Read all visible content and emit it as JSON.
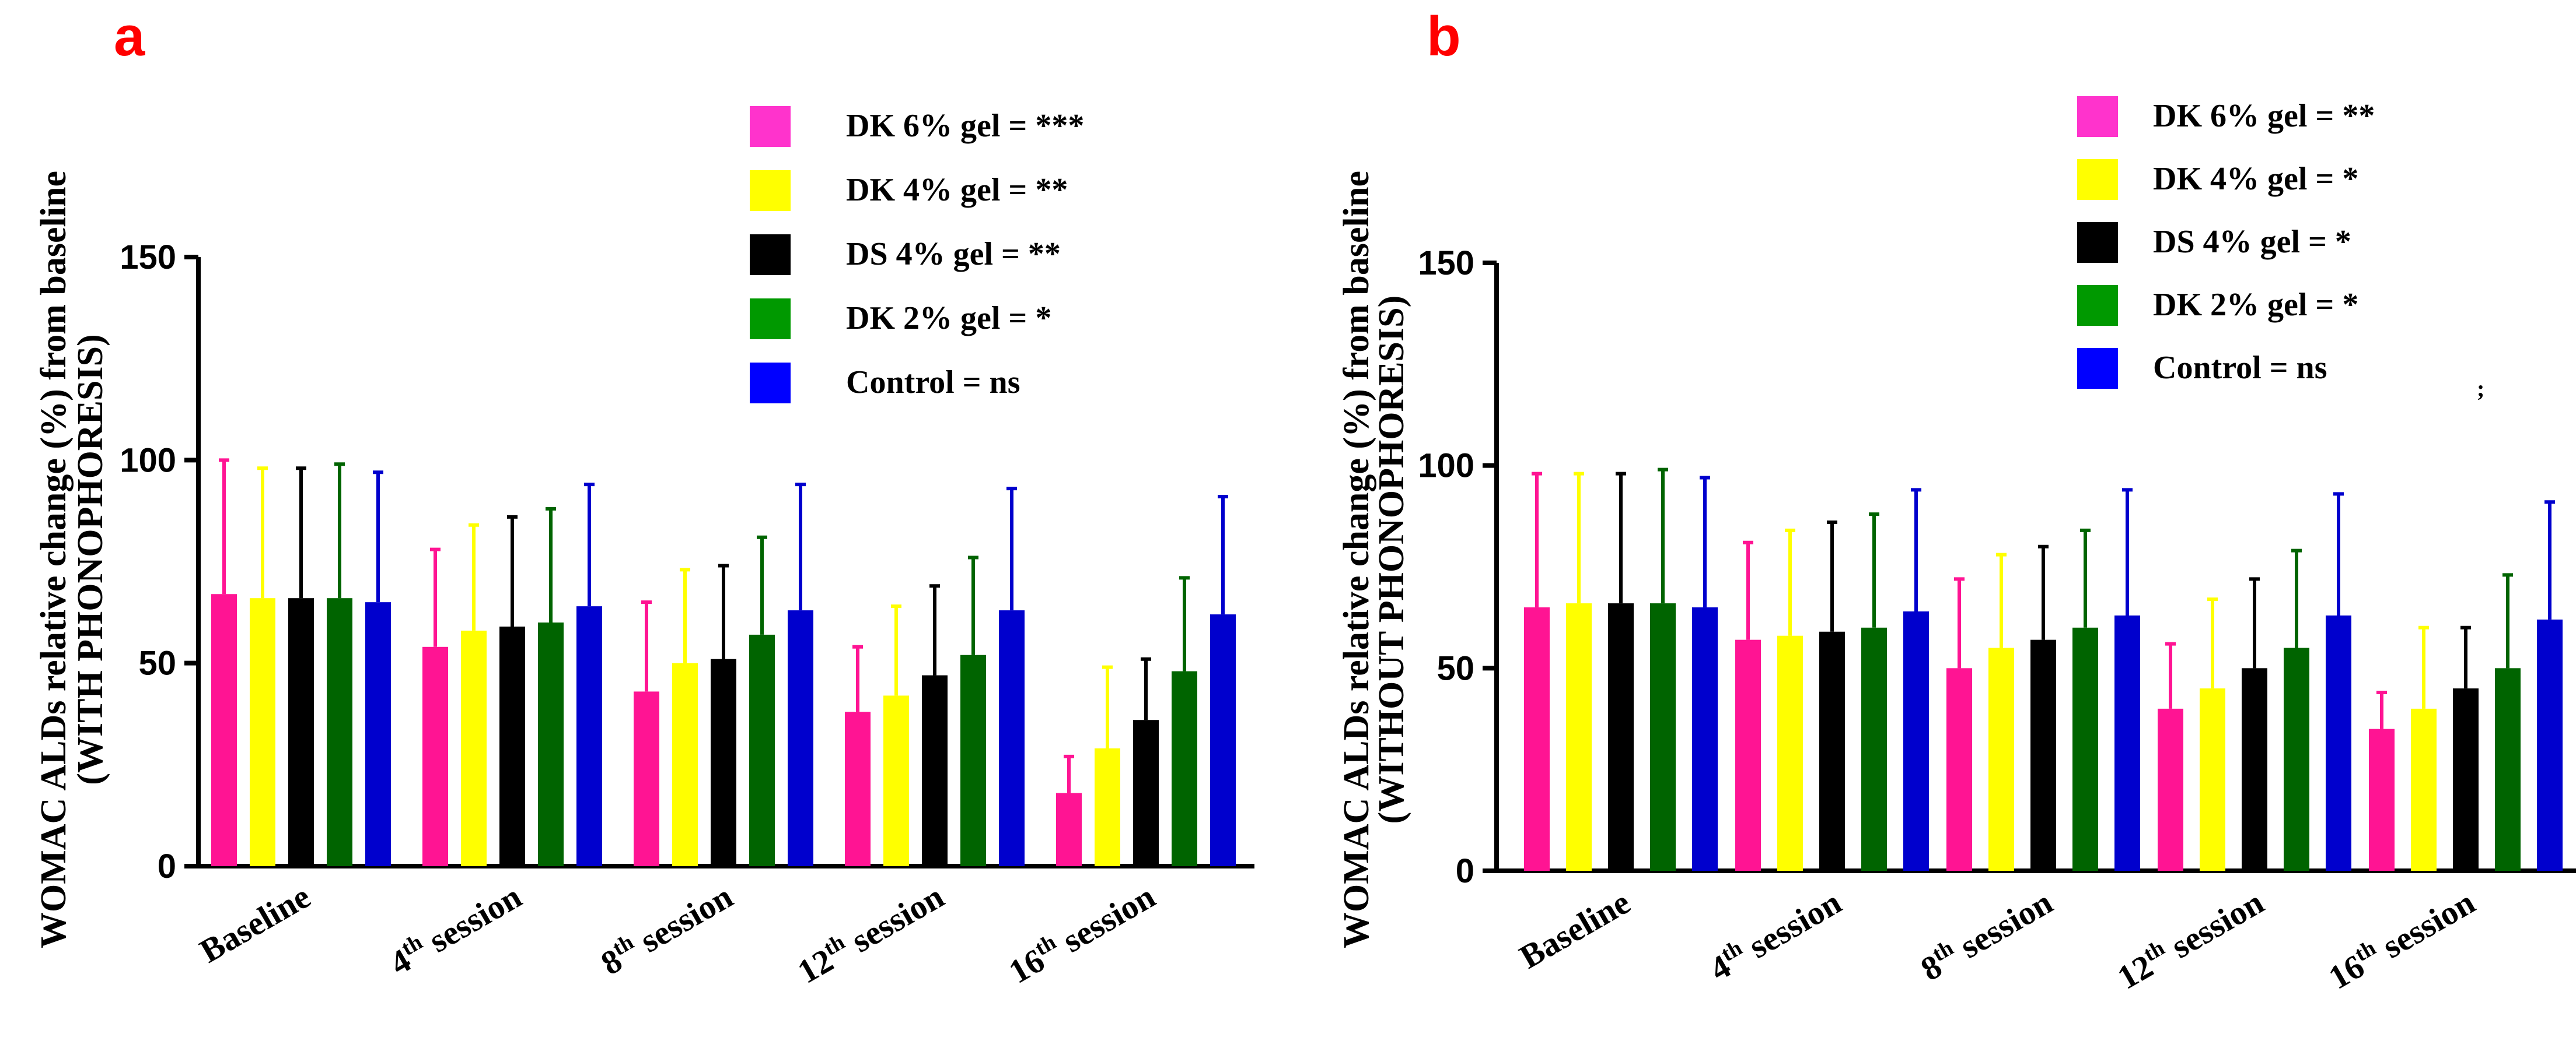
{
  "chart_data": [
    {
      "panel": "a",
      "type": "bar",
      "ylabel_line1": "WOMAC ALDs relative change (%) from baseline",
      "ylabel_line2": "(WITH PHONOPHORESIS)",
      "ylim": [
        0,
        150
      ],
      "yticks": [
        "0",
        "50",
        "100",
        "150"
      ],
      "categories": [
        {
          "main": "Baseline",
          "sup": "",
          "suffix": ""
        },
        {
          "main": "4",
          "sup": "th",
          "suffix": " session"
        },
        {
          "main": "8",
          "sup": "th",
          "suffix": " session"
        },
        {
          "main": "12",
          "sup": "th",
          "suffix": " session"
        },
        {
          "main": "16",
          "sup": "th",
          "suffix": " session"
        }
      ],
      "legend": [
        "DK 6% gel = ***",
        "DK 4% gel = **",
        "DS 4% gel = **",
        "DK 2% gel = *",
        "Control = ns"
      ],
      "series": [
        {
          "name": "DK 6% gel",
          "values": [
            67,
            54,
            43,
            38,
            18
          ],
          "errors": [
            33,
            24,
            22,
            16,
            9
          ]
        },
        {
          "name": "DK 4% gel",
          "values": [
            66,
            58,
            50,
            42,
            29
          ],
          "errors": [
            32,
            26,
            23,
            22,
            20
          ]
        },
        {
          "name": "DS 4% gel",
          "values": [
            66,
            59,
            51,
            47,
            36
          ],
          "errors": [
            32,
            27,
            23,
            22,
            15
          ]
        },
        {
          "name": "DK 2% gel",
          "values": [
            66,
            60,
            57,
            52,
            48
          ],
          "errors": [
            33,
            28,
            24,
            24,
            23
          ]
        },
        {
          "name": "Control",
          "values": [
            65,
            64,
            63,
            63,
            62
          ],
          "errors": [
            32,
            30,
            31,
            30,
            29
          ]
        }
      ]
    },
    {
      "panel": "b",
      "type": "bar",
      "ylabel_line1": "WOMAC ALDs relative change (%) from baseline",
      "ylabel_line2": "(WITHOUT PHONOPHORESIS)",
      "ylim": [
        0,
        150
      ],
      "yticks": [
        "0",
        "50",
        "100",
        "150"
      ],
      "categories": [
        {
          "main": "Baseline",
          "sup": "",
          "suffix": ""
        },
        {
          "main": "4",
          "sup": "th",
          "suffix": " session"
        },
        {
          "main": "8",
          "sup": "th",
          "suffix": " session"
        },
        {
          "main": "12",
          "sup": "th",
          "suffix": " session"
        },
        {
          "main": "16",
          "sup": "th",
          "suffix": " session"
        }
      ],
      "legend": [
        "DK 6% gel = **",
        "DK 4% gel = *",
        "DS 4% gel = *",
        "DK 2% gel = *",
        "Control = ns"
      ],
      "stray_mark": ";",
      "series": [
        {
          "name": "DK 6% gel",
          "values": [
            65,
            57,
            50,
            40,
            35
          ],
          "errors": [
            33,
            24,
            22,
            16,
            9
          ]
        },
        {
          "name": "DK 4% gel",
          "values": [
            66,
            58,
            55,
            45,
            40
          ],
          "errors": [
            32,
            26,
            23,
            22,
            20
          ]
        },
        {
          "name": "DS 4% gel",
          "values": [
            66,
            59,
            57,
            50,
            45
          ],
          "errors": [
            32,
            27,
            23,
            22,
            15
          ]
        },
        {
          "name": "DK 2% gel",
          "values": [
            66,
            60,
            60,
            55,
            50
          ],
          "errors": [
            33,
            28,
            24,
            24,
            23
          ]
        },
        {
          "name": "Control",
          "values": [
            65,
            64,
            63,
            63,
            62
          ],
          "errors": [
            32,
            30,
            31,
            30,
            29
          ]
        }
      ]
    }
  ],
  "colors": {
    "series": [
      "#ff1493",
      "#ffff00",
      "#000000",
      "#006400",
      "#0000cd"
    ],
    "legend": [
      "#ff33cc",
      "#ffff00",
      "#000000",
      "#009900",
      "#0000ff"
    ],
    "panel_letter": "#ff0000"
  }
}
